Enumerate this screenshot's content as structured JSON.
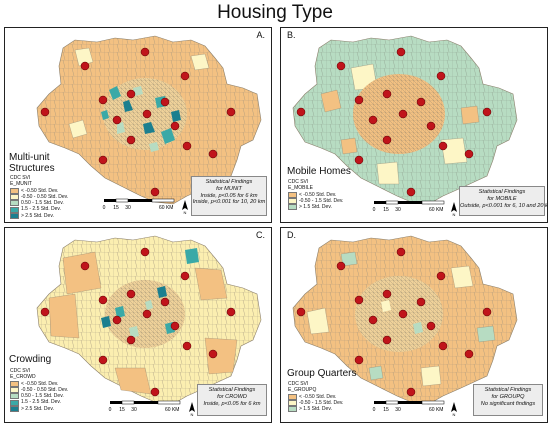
{
  "title": "Housing Type",
  "colors": {
    "lt_neg": "#f3c182",
    "mid": "#fdf6c6",
    "mid_b": "#fbeeb0",
    "pos1": "#b7dcc2",
    "pos2": "#3aa9a7",
    "pos3": "#1b7f8f",
    "point": "#c0141b",
    "boundary": "#9c8f7a"
  },
  "panels": [
    {
      "letter": "A.",
      "name": "Multi-unit Structures",
      "legend": {
        "heading": "CDC SVI",
        "variable": "E_MUNIT",
        "classes": [
          "< -0.50 Std. Dev.",
          "-0.50 - 0.50 Std. Dev.",
          "0.50 - 1.5 Std. Dev.",
          "1.5 - 2.5 Std. Dev.",
          "> 2.5 Std. Dev."
        ]
      },
      "findings": [
        "Statistical Findings",
        "for MUNIT",
        "Inside, p<0.05 for 6 km",
        "Inside, p<0.001 for 10, 20 km"
      ],
      "scale": [
        "0",
        "15",
        "30",
        "60 KM"
      ]
    },
    {
      "letter": "B.",
      "name": "Mobile Homes",
      "legend": {
        "heading": "CDC SVI",
        "variable": "E_MOBILE",
        "classes": [
          "< -0.50 Std. Dev.",
          "-0.50 - 1.5 Std. Dev.",
          "> 1.5 Std. Dev."
        ]
      },
      "findings": [
        "Statistical Findings",
        "for MOBILE",
        "Outside, p<0.001 for 6, 10 and 20 km"
      ],
      "scale": [
        "0",
        "15",
        "30",
        "60 KM"
      ]
    },
    {
      "letter": "C.",
      "name": "Crowding",
      "legend": {
        "heading": "CDC SVI",
        "variable": "E_CROWD",
        "classes": [
          "< -0.50 Std. Dev.",
          "-0.50 - 0.50 Std. Dev.",
          "0.50 - 1.5 Std. Dev.",
          "1.5 - 2.5 Std. Dev.",
          "> 2.5 Std. Dev."
        ]
      },
      "findings": [
        "Statistical Findings",
        "for CROWD",
        "Inside, p<0.05 for 6 km"
      ],
      "scale": [
        "0",
        "15",
        "30",
        "60 KM"
      ]
    },
    {
      "letter": "D.",
      "name": "Group Quarters",
      "legend": {
        "heading": "CDC SVI",
        "variable": "E_GROUPQ",
        "classes": [
          "< -0.50 Std. Dev.",
          "-0.50 - 1.5 Std. Dev.",
          "> 1.5 Std. Dev."
        ]
      },
      "findings": [
        "Statistical Findings",
        "for GROUPQ",
        "No significant findings"
      ],
      "scale": [
        "0",
        "15",
        "30",
        "60 KM"
      ]
    }
  ]
}
